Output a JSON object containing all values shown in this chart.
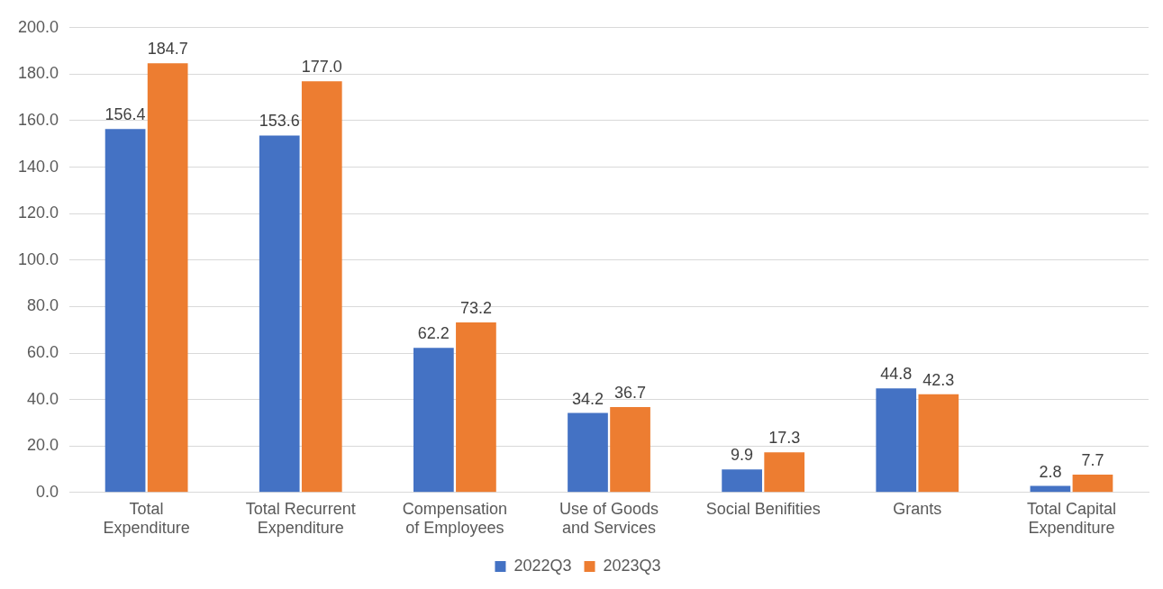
{
  "chart_data": {
    "type": "bar",
    "categories": [
      "Total\nExpenditure",
      "Total Recurrent\nExpenditure",
      "Compensation\nof Employees",
      "Use of Goods\nand Services",
      "Social Benifities",
      "Grants",
      "Total Capital\nExpenditure"
    ],
    "series": [
      {
        "name": "2022Q3",
        "color": "#4472c4",
        "values": [
          156.4,
          153.6,
          62.2,
          34.2,
          9.9,
          44.8,
          2.8
        ],
        "value_labels": [
          "156.4",
          "153.6",
          "62.2",
          "34.2",
          "9.9",
          "44.8",
          "2.8"
        ]
      },
      {
        "name": "2023Q3",
        "color": "#ed7d31",
        "values": [
          184.7,
          177.0,
          73.2,
          36.7,
          17.3,
          42.3,
          7.7
        ],
        "value_labels": [
          "184.7",
          "177.0",
          "73.2",
          "36.7",
          "17.3",
          "42.3",
          "7.7"
        ]
      }
    ],
    "ylim": [
      0,
      200
    ],
    "yticks": [
      {
        "value": 0,
        "label": "0.0"
      },
      {
        "value": 20,
        "label": "20.0"
      },
      {
        "value": 40,
        "label": "40.0"
      },
      {
        "value": 60,
        "label": "60.0"
      },
      {
        "value": 80,
        "label": "80.0"
      },
      {
        "value": 100,
        "label": "100.0"
      },
      {
        "value": 120,
        "label": "120.0"
      },
      {
        "value": 140,
        "label": "140.0"
      },
      {
        "value": 160,
        "label": "160.0"
      },
      {
        "value": 180,
        "label": "180.0"
      },
      {
        "value": 200,
        "label": "200.0"
      }
    ],
    "grid": "y",
    "legend": "bottom"
  }
}
